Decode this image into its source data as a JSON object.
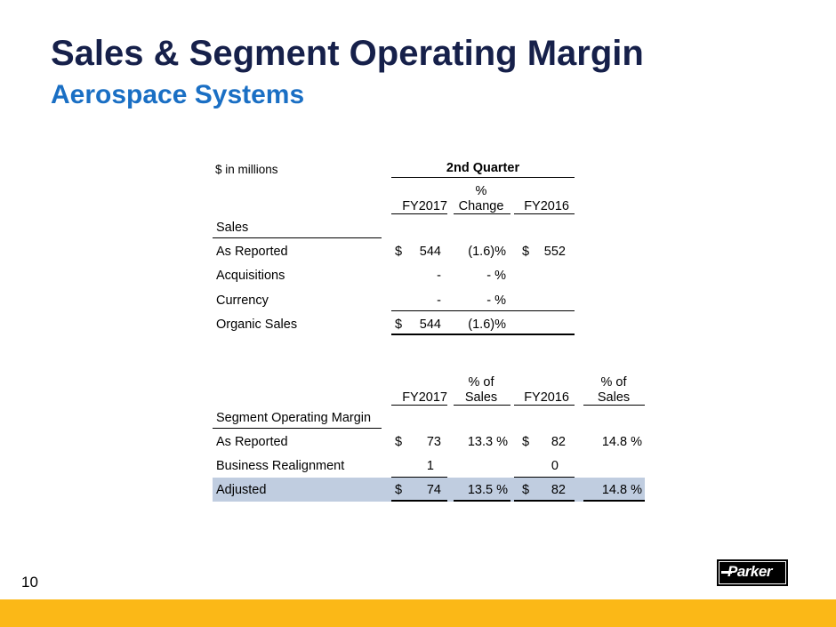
{
  "title": "Sales & Segment Operating Margin",
  "subtitle": "Aerospace Systems",
  "units_label": "$  in millions",
  "period_header": "2nd  Quarter",
  "sales_table": {
    "col_fy2017": "FY2017",
    "col_change_top": "%",
    "col_change_bottom": "Change",
    "col_fy2016": "FY2016",
    "section": "Sales",
    "rows": [
      {
        "label": "As Reported",
        "cur1": "$",
        "fy2017": "544",
        "change": "(1.6)%",
        "cur2": "$",
        "fy2016": "552"
      },
      {
        "label": "Acquisitions",
        "cur1": "",
        "fy2017": "-",
        "change": "- %",
        "cur2": "",
        "fy2016": ""
      },
      {
        "label": "Currency",
        "cur1": "",
        "fy2017": "-",
        "change": "- %",
        "cur2": "",
        "fy2016": ""
      },
      {
        "label": "Organic Sales",
        "cur1": "$",
        "fy2017": "544",
        "change": "(1.6)%",
        "cur2": "",
        "fy2016": ""
      }
    ]
  },
  "margin_table": {
    "col_fy2017": "FY2017",
    "col_pct1_top": "% of",
    "col_pct1_bottom": "Sales",
    "col_fy2016": "FY2016",
    "col_pct2_top": "% of",
    "col_pct2_bottom": "Sales",
    "section": "Segment Operating Margin",
    "rows": [
      {
        "label": "As Reported",
        "cur1": "$",
        "fy2017": "73",
        "pct1": "13.3 %",
        "cur2": "$",
        "fy2016": "82",
        "pct2": "14.8 %"
      },
      {
        "label": "Business Realignment",
        "cur1": "",
        "fy2017": "1",
        "pct1": "",
        "cur2": "",
        "fy2016": "0",
        "pct2": ""
      },
      {
        "label": "Adjusted",
        "cur1": "$",
        "fy2017": "74",
        "pct1": "13.5 %",
        "cur2": "$",
        "fy2016": "82",
        "pct2": "14.8 %"
      }
    ]
  },
  "page_number": "10",
  "logo": {
    "text": "Parker"
  },
  "colors": {
    "title": "#16204a",
    "subtitle": "#1a6fc4",
    "highlight": "#c0cde0",
    "footer_bar": "#fbb817"
  }
}
